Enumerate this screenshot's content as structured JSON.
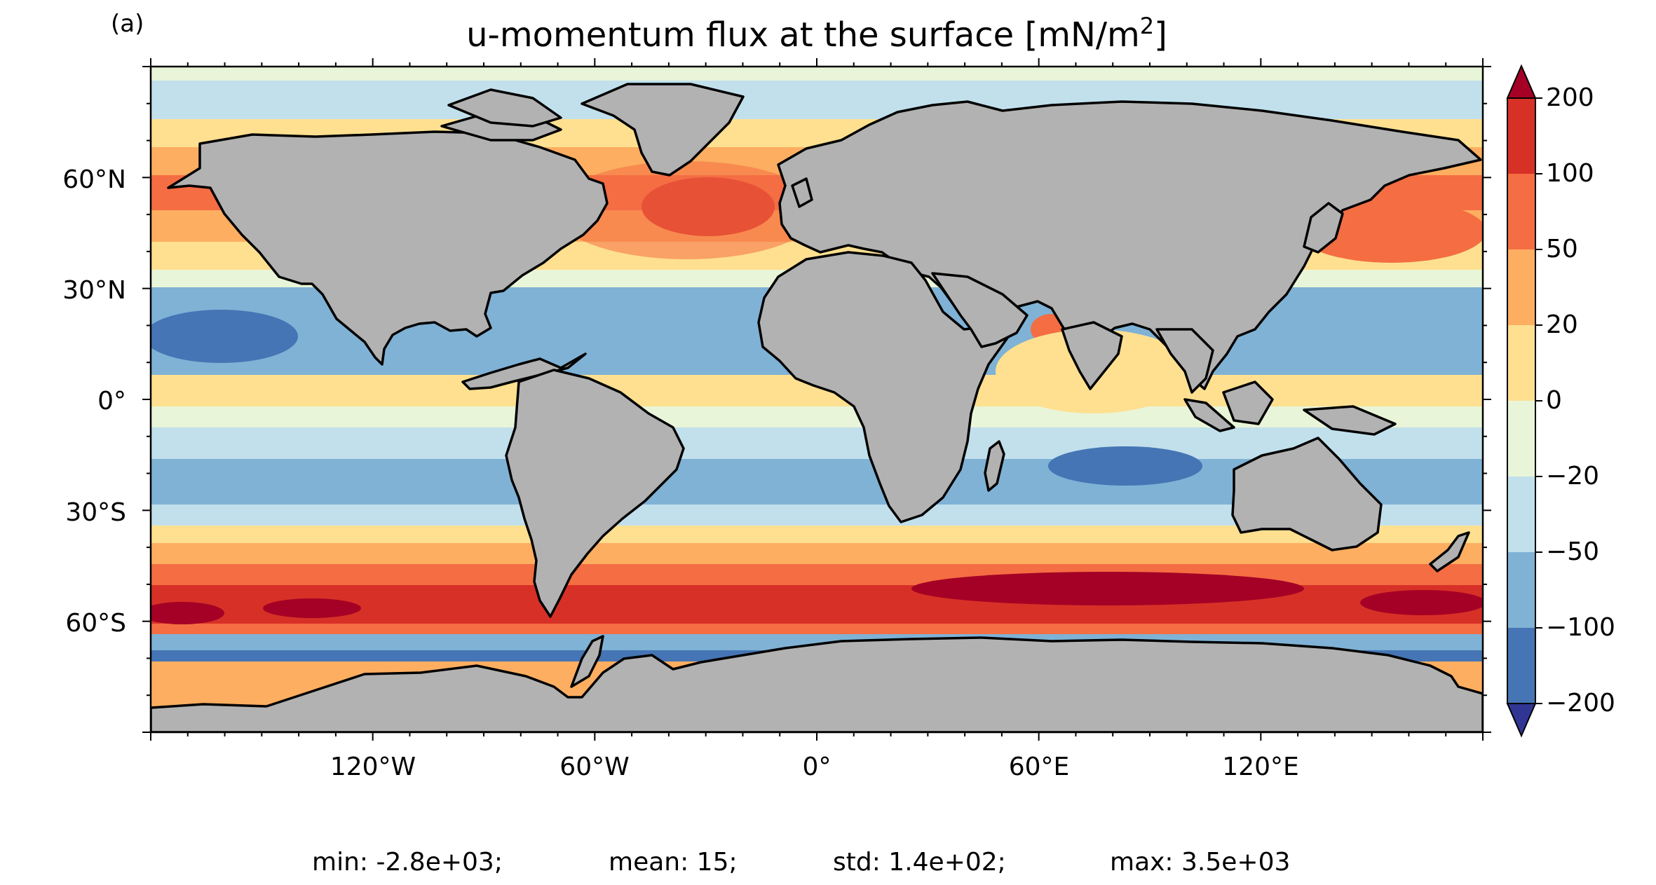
{
  "panel_label": "(a)",
  "title_main": "u-momentum flux at the surface [mN/m",
  "title_sup": "2",
  "title_close": "]",
  "lat_labels": [
    "60°N",
    "30°N",
    "0°",
    "30°S",
    "60°S"
  ],
  "lon_labels": [
    "120°W",
    "60°W",
    "0°",
    "60°E",
    "120°E"
  ],
  "stats": {
    "min": "min: -2.8e+03;",
    "mean": "mean: 15;",
    "std": "std: 1.4e+02;",
    "max": "max: 3.5e+03"
  },
  "colorbar": {
    "ticks": [
      "200",
      "100",
      "50",
      "20",
      "0",
      "−20",
      "−50",
      "−100",
      "−200"
    ],
    "colors": [
      "#a50026",
      "#d73027",
      "#f46d43",
      "#fdae61",
      "#fee090",
      "#e9f5d8",
      "#c1e0ec",
      "#7fb2d5",
      "#4575b4",
      "#313695"
    ]
  },
  "colors": {
    "land": "#b2b2b2",
    "coast": "#000000"
  }
}
